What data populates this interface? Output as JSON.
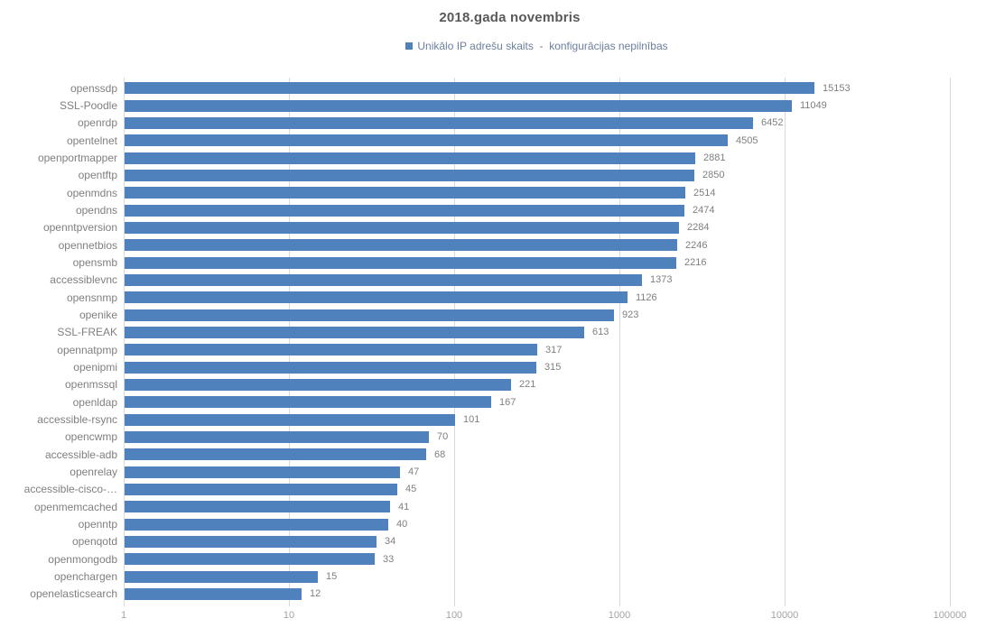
{
  "chart_data": {
    "type": "bar",
    "orientation": "horizontal",
    "title": "2018.gada novembris",
    "legend": {
      "marker": "square",
      "label": "Unikālo IP adrešu skaits  -  konfigurācijas nepilnības",
      "position": "top-center"
    },
    "categories": [
      "openssdp",
      "SSL-Poodle",
      "openrdp",
      "opentelnet",
      "openportmapper",
      "opentftp",
      "openmdns",
      "opendns",
      "openntpversion",
      "opennetbios",
      "opensmb",
      "accessiblevnc",
      "opensnmp",
      "openike",
      "SSL-FREAK",
      "opennatpmp",
      "openipmi",
      "openmssql",
      "openldap",
      "accessible-rsync",
      "opencwmp",
      "accessible-adb",
      "openrelay",
      "accessible-cisco-…",
      "openmemcached",
      "openntp",
      "openqotd",
      "openmongodb",
      "openchargen",
      "openelasticsearch"
    ],
    "values": [
      15153,
      11049,
      6452,
      4505,
      2881,
      2850,
      2514,
      2474,
      2284,
      2246,
      2216,
      1373,
      1126,
      923,
      613,
      317,
      315,
      221,
      167,
      101,
      70,
      68,
      47,
      45,
      41,
      40,
      34,
      33,
      15,
      12
    ],
    "value_labels_shown": true,
    "x_scale": "log",
    "x_ticks": [
      1,
      10,
      100,
      1000,
      10000,
      100000
    ],
    "xlim": [
      1,
      100000
    ],
    "grid": "vertical-only",
    "xlabel": "",
    "ylabel": ""
  },
  "colors": {
    "bar": "#4F81BD",
    "grid": "#D9D9D9",
    "title_text": "#595959",
    "legend_text": "#6B7F9E",
    "category_label": "#7F7F7F",
    "value_label": "#7F7F7F",
    "tick_label": "#A3A3A3",
    "background": "#FFFFFF"
  }
}
